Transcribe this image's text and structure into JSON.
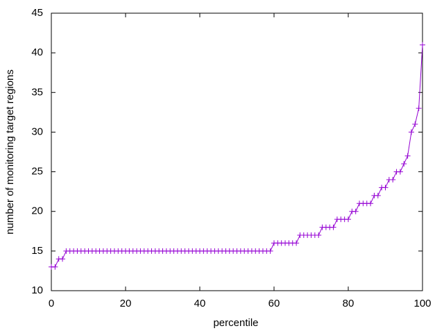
{
  "chart_data": {
    "type": "line",
    "xlabel": "percentile",
    "ylabel": "number of monitoring target regions",
    "x": [
      0,
      1,
      2,
      3,
      4,
      5,
      6,
      7,
      8,
      9,
      10,
      11,
      12,
      13,
      14,
      15,
      16,
      17,
      18,
      19,
      20,
      21,
      22,
      23,
      24,
      25,
      26,
      27,
      28,
      29,
      30,
      31,
      32,
      33,
      34,
      35,
      36,
      37,
      38,
      39,
      40,
      41,
      42,
      43,
      44,
      45,
      46,
      47,
      48,
      49,
      50,
      51,
      52,
      53,
      54,
      55,
      56,
      57,
      58,
      59,
      60,
      61,
      62,
      63,
      64,
      65,
      66,
      67,
      68,
      69,
      70,
      71,
      72,
      73,
      74,
      75,
      76,
      77,
      78,
      79,
      80,
      81,
      82,
      83,
      84,
      85,
      86,
      87,
      88,
      89,
      90,
      91,
      92,
      93,
      94,
      95,
      96,
      97,
      98,
      99,
      100
    ],
    "series": [
      {
        "color": "#9400d3",
        "values": [
          13,
          13,
          14,
          14,
          15,
          15,
          15,
          15,
          15,
          15,
          15,
          15,
          15,
          15,
          15,
          15,
          15,
          15,
          15,
          15,
          15,
          15,
          15,
          15,
          15,
          15,
          15,
          15,
          15,
          15,
          15,
          15,
          15,
          15,
          15,
          15,
          15,
          15,
          15,
          15,
          15,
          15,
          15,
          15,
          15,
          15,
          15,
          15,
          15,
          15,
          15,
          15,
          15,
          15,
          15,
          15,
          15,
          15,
          15,
          15,
          16,
          16,
          16,
          16,
          16,
          16,
          16,
          17,
          17,
          17,
          17,
          17,
          17,
          18,
          18,
          18,
          18,
          19,
          19,
          19,
          19,
          20,
          20,
          21,
          21,
          21,
          21,
          22,
          22,
          23,
          23,
          24,
          24,
          25,
          25,
          26,
          27,
          30,
          31,
          33,
          41
        ]
      }
    ],
    "xlim": [
      0,
      100
    ],
    "xticks": [
      0,
      20,
      40,
      60,
      80,
      100
    ],
    "ylim": [
      10,
      45
    ],
    "yticks": [
      10,
      15,
      20,
      25,
      30,
      35,
      40,
      45
    ]
  }
}
